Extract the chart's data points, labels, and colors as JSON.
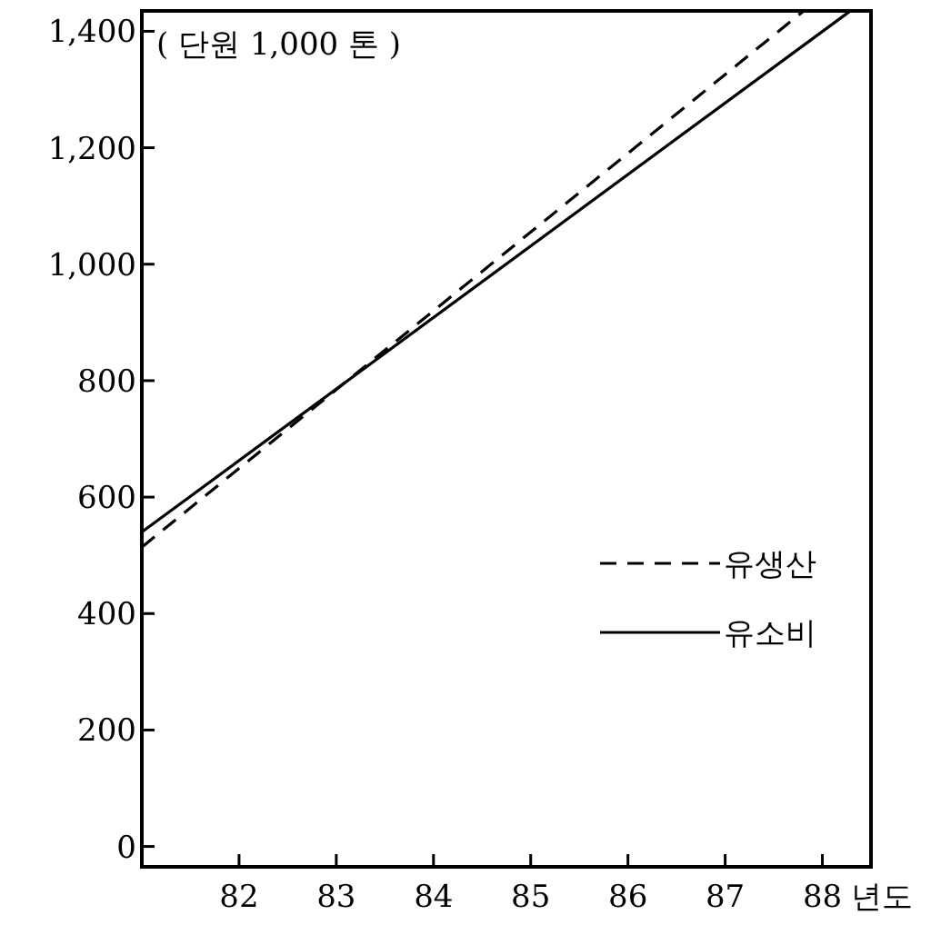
{
  "chart_data": {
    "type": "line",
    "xlabel": "년도",
    "annotations": [
      "( 단원 1,000 톤 )"
    ],
    "xlim": [
      81,
      88.5
    ],
    "ylim": [
      -35,
      1435
    ],
    "xticks": [
      82,
      83,
      84,
      85,
      86,
      87,
      88
    ],
    "yticks": [
      0,
      200,
      400,
      600,
      800,
      {
        "value": 1000,
        "label": "1,000"
      },
      {
        "value": 1200,
        "label": "1,200"
      },
      {
        "value": 1400,
        "label": "1,400"
      }
    ],
    "legend": "right",
    "grid": false,
    "series": [
      {
        "name": "유생산",
        "color": "#000000",
        "line_style": "dashed",
        "x": [
          81,
          87.8
        ],
        "values": [
          514,
          1434
        ]
      },
      {
        "name": "유소비",
        "color": "#000000",
        "line_style": "solid",
        "x": [
          81,
          88.28
        ],
        "values": [
          540,
          1434
        ]
      }
    ]
  }
}
